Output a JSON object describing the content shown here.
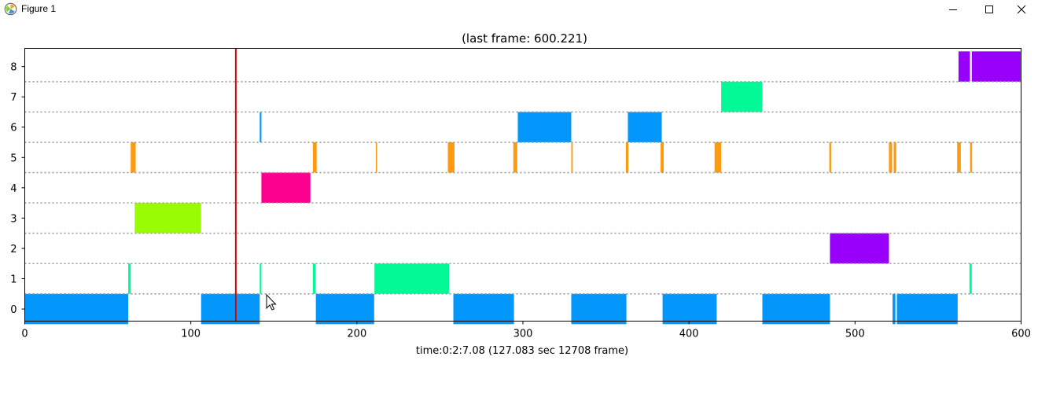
{
  "window": {
    "title": "Figure 1",
    "app_icon": "matplotlib-icon",
    "controls": [
      "minimize-icon",
      "maximize-icon",
      "close-icon"
    ]
  },
  "chart_data": {
    "type": "timeline",
    "title": "(last frame: 600.221)",
    "xlabel": "time:0:2:7.08 (127.083 sec 12708 frame)",
    "ylabel": "",
    "xlim": [
      0,
      600
    ],
    "ylim": [
      -0.4,
      8.6
    ],
    "xticks": [
      0,
      100,
      200,
      300,
      400,
      500,
      600
    ],
    "yticks": [
      0,
      1,
      2,
      3,
      4,
      5,
      6,
      7,
      8
    ],
    "grid": "dotted horizontal separators between rows",
    "cursor_line": {
      "x": 127.083,
      "color": "#e00000"
    },
    "rows": [
      {
        "y": 0,
        "color": "#0397fc",
        "segments": [
          [
            0,
            62.3
          ],
          [
            106.2,
            141.5
          ],
          [
            175.3,
            210.4
          ],
          [
            258.1,
            294.6
          ],
          [
            329.1,
            362.3
          ],
          [
            384.1,
            416.7
          ],
          [
            444.2,
            484.9
          ],
          [
            522.6,
            524.3
          ],
          [
            525.2,
            561.8
          ]
        ]
      },
      {
        "y": 1,
        "color": "#03f995",
        "segments": [
          [
            62.3,
            63.8
          ],
          [
            141.5,
            142.5
          ],
          [
            173.5,
            175
          ],
          [
            210.6,
            255.5
          ],
          [
            568.9,
            570.3
          ]
        ]
      },
      {
        "y": 2,
        "color": "#9900fc",
        "segments": [
          [
            484.9,
            520.4
          ]
        ]
      },
      {
        "y": 3,
        "color": "#99fc02",
        "segments": [
          [
            66.2,
            106.2
          ]
        ]
      },
      {
        "y": 4,
        "color": "#fc008f",
        "segments": [
          [
            142.5,
            172
          ]
        ]
      },
      {
        "y": 5,
        "color": "#fc9b12",
        "segments": [
          [
            63.8,
            66.8
          ],
          [
            173.5,
            175.8
          ],
          [
            211.4,
            212.2
          ],
          [
            254.8,
            258.8
          ],
          [
            294.2,
            296.6
          ],
          [
            329.1,
            330
          ],
          [
            362,
            363.5
          ],
          [
            382.9,
            384.8
          ],
          [
            415.4,
            419.4
          ],
          [
            484.5,
            485.6
          ],
          [
            520.4,
            522.3
          ],
          [
            523.3,
            524.8
          ],
          [
            561.5,
            563.7
          ],
          [
            569.3,
            570.5
          ]
        ]
      },
      {
        "y": 6,
        "color": "#0397fc",
        "segments": [
          [
            141.5,
            142.5
          ],
          [
            296.9,
            329.1
          ],
          [
            363.2,
            383.6
          ]
        ]
      },
      {
        "y": 7,
        "color": "#03f995",
        "segments": [
          [
            419.4,
            444.2
          ]
        ]
      },
      {
        "y": 8,
        "color": "#9900fc",
        "segments": [
          [
            562.3,
            569.2
          ],
          [
            570.3,
            599.7
          ]
        ]
      }
    ]
  }
}
